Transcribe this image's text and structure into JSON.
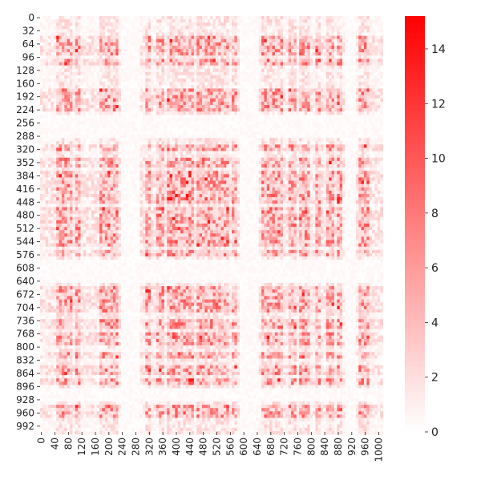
{
  "chart_data": {
    "type": "heatmap",
    "title": "",
    "xlabel": "",
    "ylabel": "",
    "x_tick_labels": [
      "0",
      "40",
      "80",
      "120",
      "160",
      "200",
      "240",
      "280",
      "320",
      "360",
      "400",
      "440",
      "480",
      "520",
      "560",
      "600",
      "640",
      "680",
      "720",
      "760",
      "800",
      "840",
      "880",
      "920",
      "960",
      "1000"
    ],
    "y_tick_labels": [
      "0",
      "32",
      "64",
      "96",
      "128",
      "160",
      "192",
      "224",
      "256",
      "288",
      "320",
      "352",
      "384",
      "416",
      "448",
      "480",
      "512",
      "544",
      "576",
      "608",
      "640",
      "672",
      "704",
      "736",
      "768",
      "800",
      "832",
      "864",
      "896",
      "928",
      "960",
      "992"
    ],
    "xlim": [
      0,
      1010
    ],
    "ylim": [
      0,
      1010
    ],
    "colorbar": {
      "range": [
        0,
        15.2
      ],
      "ticks": [
        "0",
        "2",
        "4",
        "6",
        "8",
        "10",
        "12",
        "14"
      ],
      "colors": [
        "#ffffff",
        "#ff0000"
      ]
    },
    "active_rows_cols": [
      [
        48,
        96
      ],
      [
        104,
        120
      ],
      [
        176,
        232
      ],
      [
        312,
        328
      ],
      [
        344,
        372
      ],
      [
        376,
        460
      ],
      [
        468,
        500
      ],
      [
        500,
        560
      ],
      [
        568,
        584
      ],
      [
        656,
        720
      ],
      [
        740,
        760
      ],
      [
        768,
        800
      ],
      [
        816,
        836
      ],
      [
        848,
        872
      ],
      [
        880,
        900
      ],
      [
        944,
        980
      ]
    ],
    "blank_bands": [
      [
        240,
        300
      ],
      [
        596,
        652
      ],
      [
        904,
        940
      ]
    ],
    "value_range": [
      0,
      15
    ]
  }
}
